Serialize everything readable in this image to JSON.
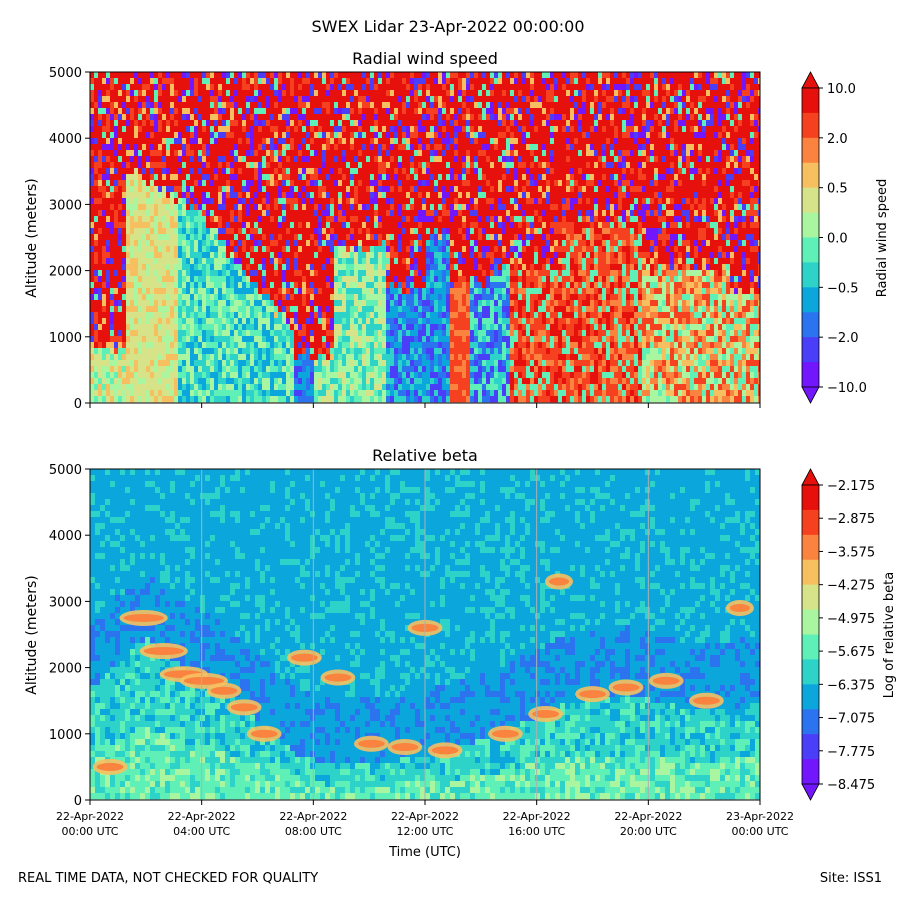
{
  "title": "SWEX Lidar 23-Apr-2022 00:00:00",
  "footer": {
    "left": "REAL TIME DATA, NOT CHECKED FOR QUALITY",
    "right": "Site: ISS1"
  },
  "chart_data": [
    {
      "type": "heatmap",
      "title": "Radial wind speed",
      "ylabel": "Altitude (meters)",
      "ylim": [
        0,
        5000
      ],
      "yticks": [
        "0",
        "1000",
        "2000",
        "3000",
        "4000",
        "5000"
      ],
      "colorbar": {
        "label": "Radial wind speed",
        "tick_labels": [
          "10.0",
          "2.0",
          "0.5",
          "0.0",
          "−0.5",
          "−2.0",
          "−10.0"
        ],
        "colors": [
          "#e6110c",
          "#f5411f",
          "#f9833f",
          "#f6c060",
          "#d6e389",
          "#a9f5a0",
          "#5ff0b8",
          "#2dd2c9",
          "#0ba6dc",
          "#2c73ef",
          "#4b3ef8",
          "#7216fe"
        ],
        "extend": "both"
      }
    },
    {
      "type": "heatmap",
      "title": "Relative beta",
      "ylabel": "Altitude (meters)",
      "xlabel": "Time (UTC)",
      "ylim": [
        0,
        5000
      ],
      "yticks": [
        "0",
        "1000",
        "2000",
        "3000",
        "4000",
        "5000"
      ],
      "xticks": [
        {
          "date": "22-Apr-2022",
          "time": "00:00 UTC"
        },
        {
          "date": "22-Apr-2022",
          "time": "04:00 UTC"
        },
        {
          "date": "22-Apr-2022",
          "time": "08:00 UTC"
        },
        {
          "date": "22-Apr-2022",
          "time": "12:00 UTC"
        },
        {
          "date": "22-Apr-2022",
          "time": "16:00 UTC"
        },
        {
          "date": "22-Apr-2022",
          "time": "20:00 UTC"
        },
        {
          "date": "23-Apr-2022",
          "time": "00:00 UTC"
        }
      ],
      "colorbar": {
        "label": "Log of relative beta",
        "tick_labels": [
          "−2.175",
          "−2.875",
          "−3.575",
          "−4.275",
          "−4.975",
          "−5.675",
          "−6.375",
          "−7.075",
          "−7.775",
          "−8.475"
        ],
        "colors": [
          "#e6110c",
          "#f5411f",
          "#f9833f",
          "#f6c060",
          "#d6e389",
          "#a9f5a0",
          "#5ff0b8",
          "#2dd2c9",
          "#0ba6dc",
          "#2c73ef",
          "#4b3ef8",
          "#7216fe"
        ],
        "extend": "both"
      }
    }
  ]
}
